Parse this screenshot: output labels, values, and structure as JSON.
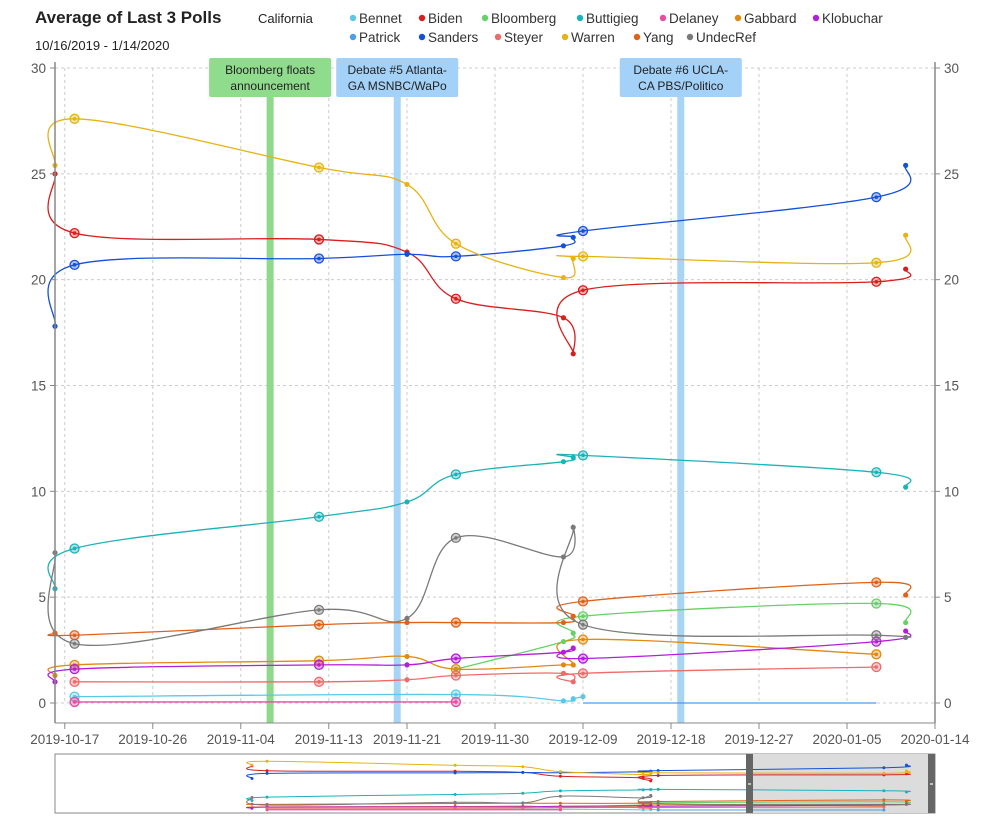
{
  "header": {
    "title": "Average of Last 3 Polls",
    "date_range": "10/16/2019 - 1/14/2020",
    "state": "California"
  },
  "chart_data": {
    "type": "line",
    "title": "Average of Last 3 Polls",
    "ylim": [
      0,
      30
    ],
    "yticks": [
      "0",
      "5",
      "10",
      "15",
      "20",
      "25",
      "30"
    ],
    "xticks": [
      "2019-10-17",
      "2019-10-26",
      "2019-11-04",
      "2019-11-13",
      "2019-11-21",
      "2019-11-30",
      "2019-12-09",
      "2019-12-18",
      "2019-12-27",
      "2020-01-05",
      "2020-01-14"
    ],
    "xrange": [
      "2019-10-16",
      "2020-01-14"
    ],
    "grid": true,
    "legend_position": "top",
    "events": [
      {
        "label1": "Bloomberg floats",
        "label2": "announcement",
        "date": "2019-11-07",
        "color": "#8fd98c",
        "box_color": "#8fdc8c"
      },
      {
        "label1": "Debate #5 Atlanta-",
        "label2": "GA MSNBC/WaPo",
        "date": "2019-11-20",
        "color": "#a8d4f5",
        "box_color": "#a3d1f7"
      },
      {
        "label1": "Debate #6 UCLA-",
        "label2": "CA PBS/Politico",
        "date": "2019-12-19",
        "color": "#a8d4f5",
        "box_color": "#a3d1f7"
      }
    ],
    "series": [
      {
        "name": "Bennet",
        "color": "#5bc8e6",
        "points": [
          [
            "2019-10-18",
            0.3,
            1
          ],
          [
            "2019-11-26",
            0.4,
            1
          ],
          [
            "2019-12-07",
            0.1,
            0
          ],
          [
            "2019-12-08",
            0.2,
            0
          ],
          [
            "2019-12-09",
            0.3,
            0
          ]
        ]
      },
      {
        "name": "Biden",
        "color": "#d91e1e",
        "points": [
          [
            "2019-10-16",
            25.0,
            0
          ],
          [
            "2019-10-18",
            22.2,
            1
          ],
          [
            "2019-11-12",
            21.9,
            1
          ],
          [
            "2019-11-21",
            21.3,
            0
          ],
          [
            "2019-11-26",
            19.1,
            1
          ],
          [
            "2019-12-07",
            18.2,
            0
          ],
          [
            "2019-12-08",
            16.5,
            0
          ],
          [
            "2019-12-09",
            19.5,
            1
          ],
          [
            "2020-01-08",
            19.9,
            1
          ],
          [
            "2020-01-11",
            20.5,
            0
          ]
        ]
      },
      {
        "name": "Bloomberg",
        "color": "#66d166",
        "points": [
          [
            "2019-11-26",
            1.6,
            0
          ],
          [
            "2019-12-07",
            2.9,
            0
          ],
          [
            "2019-12-08",
            3.3,
            0
          ],
          [
            "2019-12-09",
            4.1,
            1
          ],
          [
            "2020-01-08",
            4.7,
            1
          ],
          [
            "2020-01-11",
            3.8,
            0
          ]
        ]
      },
      {
        "name": "Buttigieg",
        "color": "#1bb3b8",
        "points": [
          [
            "2019-10-16",
            5.4,
            0
          ],
          [
            "2019-10-18",
            7.3,
            1
          ],
          [
            "2019-11-12",
            8.8,
            1
          ],
          [
            "2019-11-21",
            9.5,
            0
          ],
          [
            "2019-11-26",
            10.8,
            1
          ],
          [
            "2019-12-07",
            11.4,
            0
          ],
          [
            "2019-12-08",
            11.6,
            0
          ],
          [
            "2019-12-09",
            11.7,
            1
          ],
          [
            "2020-01-08",
            10.9,
            1
          ],
          [
            "2020-01-11",
            10.2,
            0
          ]
        ]
      },
      {
        "name": "Delaney",
        "color": "#e84ca0",
        "points": [
          [
            "2019-10-18",
            0.05,
            1
          ],
          [
            "2019-11-26",
            0.05,
            1
          ]
        ]
      },
      {
        "name": "Gabbard",
        "color": "#e08a12",
        "points": [
          [
            "2019-10-16",
            1.3,
            0
          ],
          [
            "2019-10-18",
            1.8,
            1
          ],
          [
            "2019-11-12",
            2.0,
            1
          ],
          [
            "2019-11-21",
            2.2,
            0
          ],
          [
            "2019-11-26",
            1.6,
            1
          ],
          [
            "2019-12-07",
            1.8,
            0
          ],
          [
            "2019-12-08",
            1.8,
            0
          ],
          [
            "2019-12-09",
            3.0,
            1
          ],
          [
            "2020-01-08",
            2.3,
            1
          ]
        ]
      },
      {
        "name": "Klobuchar",
        "color": "#b31ed9",
        "points": [
          [
            "2019-10-16",
            1.0,
            0
          ],
          [
            "2019-10-18",
            1.6,
            1
          ],
          [
            "2019-11-12",
            1.8,
            1
          ],
          [
            "2019-11-21",
            1.8,
            0
          ],
          [
            "2019-11-26",
            2.1,
            1
          ],
          [
            "2019-12-07",
            2.4,
            0
          ],
          [
            "2019-12-08",
            2.6,
            0
          ],
          [
            "2019-12-09",
            2.1,
            1
          ],
          [
            "2020-01-08",
            2.9,
            1
          ],
          [
            "2020-01-11",
            3.4,
            0
          ]
        ]
      },
      {
        "name": "Patrick",
        "color": "#4a9ee6",
        "points": [
          [
            "2019-12-09",
            0.0,
            0
          ],
          [
            "2020-01-08",
            0.0,
            0
          ]
        ]
      },
      {
        "name": "Sanders",
        "color": "#1550d9",
        "points": [
          [
            "2019-10-16",
            17.8,
            0
          ],
          [
            "2019-10-18",
            20.7,
            1
          ],
          [
            "2019-11-12",
            21.0,
            1
          ],
          [
            "2019-11-21",
            21.2,
            0
          ],
          [
            "2019-11-26",
            21.1,
            1
          ],
          [
            "2019-12-07",
            21.6,
            0
          ],
          [
            "2019-12-08",
            22.0,
            0
          ],
          [
            "2019-12-09",
            22.3,
            1
          ],
          [
            "2020-01-08",
            23.9,
            1
          ],
          [
            "2020-01-11",
            25.4,
            0
          ]
        ]
      },
      {
        "name": "Steyer",
        "color": "#f06a6a",
        "points": [
          [
            "2019-10-18",
            1.0,
            1
          ],
          [
            "2019-11-12",
            1.0,
            1
          ],
          [
            "2019-11-21",
            1.1,
            0
          ],
          [
            "2019-11-26",
            1.3,
            1
          ],
          [
            "2019-12-07",
            1.4,
            0
          ],
          [
            "2019-12-08",
            1.0,
            0
          ],
          [
            "2019-12-09",
            1.4,
            1
          ],
          [
            "2020-01-08",
            1.7,
            1
          ]
        ]
      },
      {
        "name": "Warren",
        "color": "#e5b312",
        "points": [
          [
            "2019-10-16",
            25.4,
            0
          ],
          [
            "2019-10-18",
            27.6,
            1
          ],
          [
            "2019-11-12",
            25.3,
            1
          ],
          [
            "2019-11-21",
            24.5,
            0
          ],
          [
            "2019-11-26",
            21.7,
            1
          ],
          [
            "2019-12-07",
            20.1,
            0
          ],
          [
            "2019-12-08",
            21.0,
            0
          ],
          [
            "2019-12-09",
            21.1,
            1
          ],
          [
            "2020-01-08",
            20.8,
            1
          ],
          [
            "2020-01-11",
            22.1,
            0
          ]
        ]
      },
      {
        "name": "Yang",
        "color": "#e0621a",
        "points": [
          [
            "2019-10-16",
            3.3,
            0
          ],
          [
            "2019-10-18",
            3.2,
            1
          ],
          [
            "2019-11-12",
            3.7,
            1
          ],
          [
            "2019-11-21",
            3.8,
            0
          ],
          [
            "2019-11-26",
            3.8,
            1
          ],
          [
            "2019-12-07",
            3.8,
            0
          ],
          [
            "2019-12-08",
            4.1,
            0
          ],
          [
            "2019-12-09",
            4.8,
            1
          ],
          [
            "2020-01-08",
            5.7,
            1
          ],
          [
            "2020-01-11",
            5.1,
            0
          ]
        ]
      },
      {
        "name": "UndecRef",
        "color": "#7a7a7a",
        "points": [
          [
            "2019-10-16",
            7.1,
            0
          ],
          [
            "2019-10-18",
            2.8,
            1
          ],
          [
            "2019-11-12",
            4.4,
            1
          ],
          [
            "2019-11-21",
            4.0,
            0
          ],
          [
            "2019-11-26",
            7.8,
            1
          ],
          [
            "2019-12-07",
            6.9,
            0
          ],
          [
            "2019-12-08",
            8.3,
            0
          ],
          [
            "2019-12-09",
            3.7,
            1
          ],
          [
            "2020-01-08",
            3.2,
            1
          ],
          [
            "2020-01-11",
            3.1,
            0
          ]
        ]
      }
    ]
  }
}
